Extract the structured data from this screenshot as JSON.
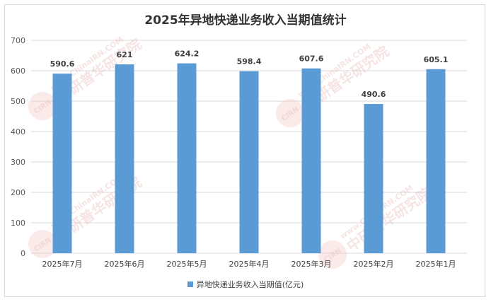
{
  "chart_data": {
    "type": "bar",
    "title": "2025年异地快递业务收入当期值统计",
    "categories": [
      "2025年7月",
      "2025年6月",
      "2025年5月",
      "2025年4月",
      "2025年3月",
      "2025年2月",
      "2025年1月"
    ],
    "series": [
      {
        "name": "异地快递业务收入当期值(亿元)",
        "values": [
          590.6,
          621,
          624.2,
          598.4,
          607.6,
          490.6,
          605.1
        ]
      }
    ],
    "data_labels": [
      "590.6",
      "621",
      "624.2",
      "598.4",
      "607.6",
      "490.6",
      "605.1"
    ],
    "ylim": [
      0,
      700
    ],
    "yticks": [
      0,
      100,
      200,
      300,
      400,
      500,
      600,
      700
    ],
    "grid": true,
    "legend_position": "bottom",
    "bar_color": "#5b9bd5"
  },
  "watermark": {
    "text": "www.ChinaIRN.COM",
    "brand": "中研普华研究院",
    "logo": "CIRN"
  }
}
